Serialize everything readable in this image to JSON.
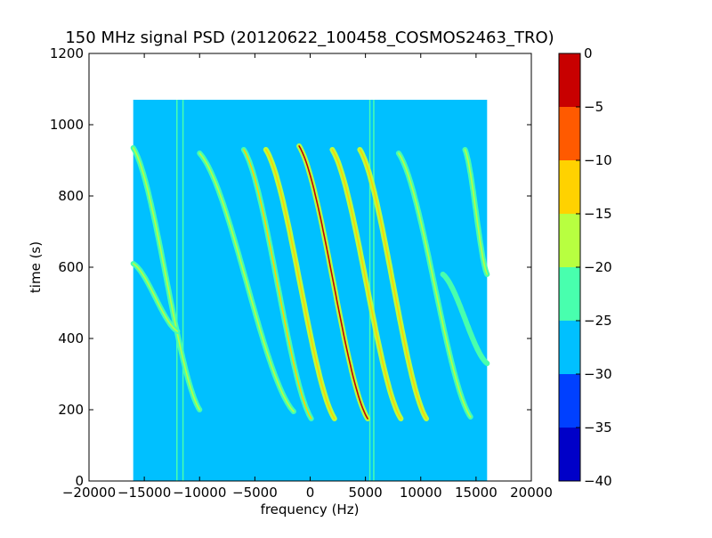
{
  "chart_data": {
    "type": "heatmap",
    "title": "150 MHz signal PSD (20120622_100458_COSMOS2463_TRO)",
    "xlabel": "frequency (Hz)",
    "ylabel": "time (s)",
    "xlim": [
      -20000,
      20000
    ],
    "ylim": [
      0,
      1200
    ],
    "xticks": [
      -20000,
      -15000,
      -10000,
      -5000,
      0,
      5000,
      10000,
      15000,
      20000
    ],
    "yticks": [
      0,
      200,
      400,
      600,
      800,
      1000,
      1200
    ],
    "data_extent": {
      "x": [
        -16000,
        16000
      ],
      "y": [
        0,
        1070
      ]
    },
    "background_level": -27.5,
    "colorbar": {
      "ticks": [
        0,
        -5,
        -10,
        -15,
        -20,
        -25,
        -30,
        -35,
        -40
      ],
      "bands": [
        {
          "range": [
            -40,
            -35
          ],
          "color": "#0000c8"
        },
        {
          "range": [
            -35,
            -30
          ],
          "color": "#0040ff"
        },
        {
          "range": [
            -30,
            -25
          ],
          "color": "#00c0ff"
        },
        {
          "range": [
            -25,
            -20
          ],
          "color": "#48ffae"
        },
        {
          "range": [
            -20,
            -15
          ],
          "color": "#b8ff40"
        },
        {
          "range": [
            -15,
            -10
          ],
          "color": "#ffd200"
        },
        {
          "range": [
            -10,
            -5
          ],
          "color": "#ff5a00"
        },
        {
          "range": [
            -5,
            0
          ],
          "color": "#c80000"
        }
      ]
    },
    "vertical_lines": [
      {
        "freq": -12050,
        "t_range": [
          0,
          1070
        ],
        "level": -22
      },
      {
        "freq": -11500,
        "t_range": [
          0,
          1070
        ],
        "level": -22
      },
      {
        "freq": 5400,
        "t_range": [
          0,
          1070
        ],
        "level": -22
      },
      {
        "freq": 5750,
        "t_range": [
          0,
          1070
        ],
        "level": -22
      }
    ],
    "series": [
      {
        "f_top": -16000,
        "f_bottom": -10000,
        "t_top": 935,
        "t_bottom": 200,
        "level": -21,
        "core_level": -17
      },
      {
        "f_top": -16000,
        "f_bottom": -12000,
        "t_top": 610,
        "t_bottom": 420,
        "level": -21,
        "core_level": -17
      },
      {
        "f_top": -10000,
        "f_bottom": -1500,
        "t_top": 920,
        "t_bottom": 195,
        "level": -22,
        "core_level": -18
      },
      {
        "f_top": -6000,
        "f_bottom": 100,
        "t_top": 930,
        "t_bottom": 175,
        "level": -20,
        "core_level": -13
      },
      {
        "f_top": -4000,
        "f_bottom": 2200,
        "t_top": 930,
        "t_bottom": 175,
        "level": -19,
        "core_level": -12
      },
      {
        "f_top": -1000,
        "f_bottom": 5200,
        "t_top": 940,
        "t_bottom": 175,
        "level": -16,
        "core_level": -4
      },
      {
        "f_top": 2000,
        "f_bottom": 8200,
        "t_top": 930,
        "t_bottom": 175,
        "level": -19,
        "core_level": -11
      },
      {
        "f_top": 4500,
        "f_bottom": 10500,
        "t_top": 930,
        "t_bottom": 175,
        "level": -19,
        "core_level": -12
      },
      {
        "f_top": 8000,
        "f_bottom": 14500,
        "t_top": 920,
        "t_bottom": 180,
        "level": -21,
        "core_level": -17
      },
      {
        "f_top": 14000,
        "f_bottom": 16000,
        "t_top": 930,
        "t_bottom": 580,
        "level": -21,
        "core_level": -17
      },
      {
        "f_top": 12000,
        "f_bottom": 16000,
        "t_top": 580,
        "t_bottom": 330,
        "level": -23,
        "core_level": -21
      }
    ]
  }
}
